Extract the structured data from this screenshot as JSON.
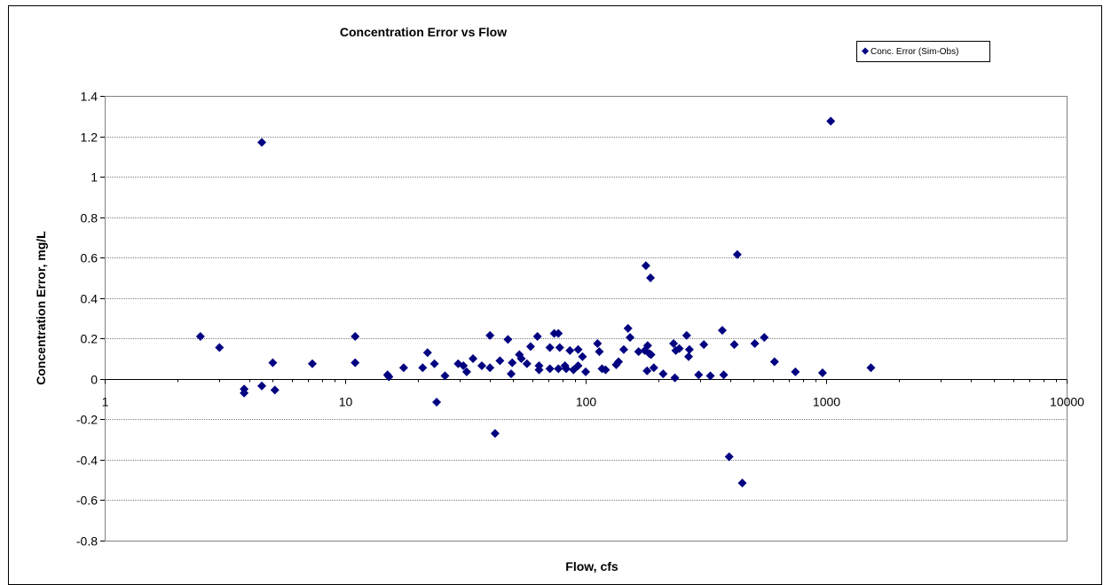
{
  "chart_data": {
    "type": "scatter",
    "title": "Concentration Error vs Flow",
    "xlabel": "Flow, cfs",
    "ylabel": "Concentration Error, mg/L",
    "x_scale": "log",
    "xlim": [
      1,
      10000
    ],
    "ylim": [
      -0.8,
      1.4
    ],
    "x_ticks": [
      "1",
      "10",
      "100",
      "1000",
      "10000"
    ],
    "y_ticks": [
      "1.4",
      "1.2",
      "1",
      "0.8",
      "0.6",
      "0.4",
      "0.2",
      "0",
      "-0.2",
      "-0.4",
      "-0.6",
      "-0.8"
    ],
    "grid": "horizontal",
    "legend_position": "top-right",
    "marker": "diamond",
    "color": "#000080",
    "series": [
      {
        "name": "Conc. Error (Sim-Obs)",
        "points": [
          [
            2.5,
            0.21
          ],
          [
            3.0,
            0.155
          ],
          [
            3.8,
            -0.05
          ],
          [
            3.8,
            -0.07
          ],
          [
            4.5,
            -0.035
          ],
          [
            4.5,
            1.17
          ],
          [
            5.0,
            0.08
          ],
          [
            5.1,
            -0.055
          ],
          [
            7.3,
            0.075
          ],
          [
            11.0,
            0.21
          ],
          [
            11.0,
            0.08
          ],
          [
            15.0,
            0.02
          ],
          [
            15.2,
            0.01
          ],
          [
            17.5,
            0.055
          ],
          [
            21.0,
            0.055
          ],
          [
            22.0,
            0.13
          ],
          [
            23.5,
            0.075
          ],
          [
            24.0,
            -0.115
          ],
          [
            26.0,
            0.015
          ],
          [
            29.5,
            0.075
          ],
          [
            31.0,
            0.065
          ],
          [
            32.0,
            0.035
          ],
          [
            34.0,
            0.1
          ],
          [
            37.0,
            0.065
          ],
          [
            40.0,
            0.215
          ],
          [
            40.0,
            0.055
          ],
          [
            42.0,
            -0.27
          ],
          [
            44.0,
            0.09
          ],
          [
            47.5,
            0.195
          ],
          [
            49.0,
            0.025
          ],
          [
            49.5,
            0.08
          ],
          [
            53.0,
            0.12
          ],
          [
            54.0,
            0.1
          ],
          [
            57.0,
            0.075
          ],
          [
            59.0,
            0.16
          ],
          [
            63.0,
            0.21
          ],
          [
            64.0,
            0.065
          ],
          [
            64.0,
            0.045
          ],
          [
            71.0,
            0.05
          ],
          [
            71.0,
            0.155
          ],
          [
            74.0,
            0.225
          ],
          [
            77.0,
            0.225
          ],
          [
            77.0,
            0.05
          ],
          [
            78.0,
            0.155
          ],
          [
            82.0,
            0.065
          ],
          [
            83.0,
            0.05
          ],
          [
            86.0,
            0.14
          ],
          [
            89.0,
            0.045
          ],
          [
            93.0,
            0.065
          ],
          [
            93.0,
            0.145
          ],
          [
            97.0,
            0.11
          ],
          [
            100.0,
            0.035
          ],
          [
            112.0,
            0.175
          ],
          [
            114.0,
            0.135
          ],
          [
            117.0,
            0.05
          ],
          [
            121.0,
            0.045
          ],
          [
            134.0,
            0.07
          ],
          [
            137.0,
            0.085
          ],
          [
            144.0,
            0.145
          ],
          [
            150.0,
            0.25
          ],
          [
            153.0,
            0.205
          ],
          [
            166.0,
            0.135
          ],
          [
            176.0,
            0.14
          ],
          [
            178.0,
            0.56
          ],
          [
            180.0,
            0.04
          ],
          [
            181.0,
            0.165
          ],
          [
            184.0,
            0.125
          ],
          [
            186.0,
            0.5
          ],
          [
            187.0,
            0.12
          ],
          [
            192.0,
            0.055
          ],
          [
            210.0,
            0.025
          ],
          [
            232.0,
            0.175
          ],
          [
            235.0,
            0.005
          ],
          [
            237.0,
            0.14
          ],
          [
            245.0,
            0.15
          ],
          [
            263.0,
            0.215
          ],
          [
            268.0,
            0.11
          ],
          [
            270.0,
            0.145
          ],
          [
            295.0,
            0.02
          ],
          [
            310.0,
            0.17
          ],
          [
            330.0,
            0.015
          ],
          [
            370.0,
            0.24
          ],
          [
            375.0,
            0.02
          ],
          [
            395.0,
            -0.385
          ],
          [
            415.0,
            0.17
          ],
          [
            427.0,
            0.615
          ],
          [
            448.0,
            -0.515
          ],
          [
            505.0,
            0.175
          ],
          [
            553.0,
            0.205
          ],
          [
            610.0,
            0.085
          ],
          [
            745.0,
            0.035
          ],
          [
            966.0,
            0.03
          ],
          [
            1045.0,
            1.275
          ],
          [
            1535.0,
            0.055
          ]
        ]
      }
    ]
  }
}
